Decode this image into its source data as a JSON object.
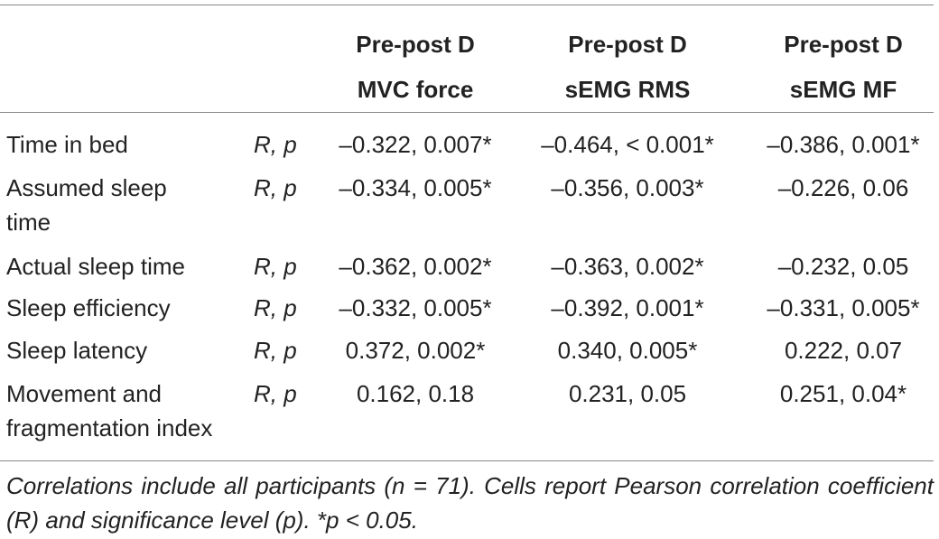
{
  "header": {
    "col1_line1": "Pre-post D",
    "col1_line2": "MVC force",
    "col2_line1": "Pre-post D",
    "col2_line2": "sEMG RMS",
    "col3_line1": "Pre-post D",
    "col3_line2": "sEMG MF"
  },
  "rows": [
    {
      "label1": "Time in bed",
      "label2": "",
      "stat": "R, p",
      "v1": "–0.322, 0.007*",
      "v2": "–0.464, < 0.001*",
      "v3": "–0.386, 0.001*"
    },
    {
      "label1": "Assumed sleep",
      "label2": "time",
      "stat": "R, p",
      "v1": "–0.334, 0.005*",
      "v2": "–0.356, 0.003*",
      "v3": "–0.226, 0.06"
    },
    {
      "label1": "Actual sleep time",
      "label2": "",
      "stat": "R, p",
      "v1": "–0.362, 0.002*",
      "v2": "–0.363, 0.002*",
      "v3": "–0.232, 0.05"
    },
    {
      "label1": "Sleep efficiency",
      "label2": "",
      "stat": "R, p",
      "v1": "–0.332, 0.005*",
      "v2": "–0.392, 0.001*",
      "v3": "–0.331, 0.005*"
    },
    {
      "label1": "Sleep latency",
      "label2": "",
      "stat": "R, p",
      "v1": "0.372, 0.002*",
      "v2": "0.340, 0.005*",
      "v3": "0.222, 0.07"
    },
    {
      "label1": "Movement and",
      "label2": "fragmentation index",
      "stat": "R, p",
      "v1": "0.162, 0.18",
      "v2": "0.231, 0.05",
      "v3": "0.251, 0.04*"
    }
  ],
  "footnote": "Correlations include all participants (n = 71). Cells report Pearson correlation coefficient (R) and significance level (p). *p < 0.05."
}
